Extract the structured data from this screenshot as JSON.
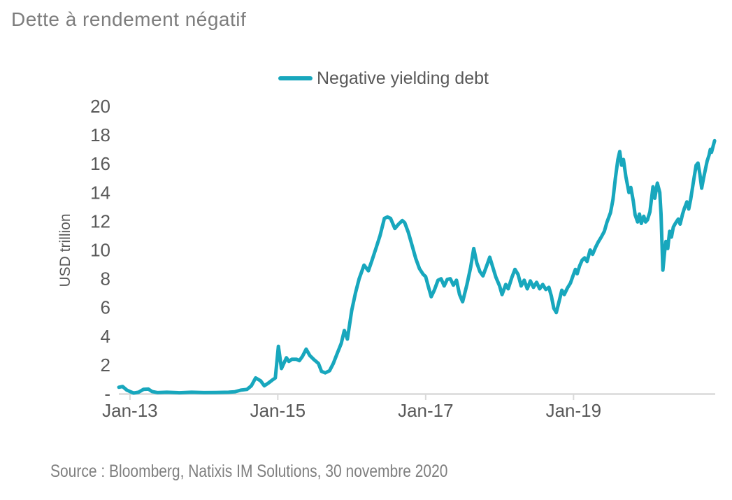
{
  "title": "Dette à rendement négatif",
  "legend": {
    "label": "Negative yielding debt"
  },
  "y_axis_title": "USD trillion",
  "source_note": "Source : Bloomberg, Natixis IM Solutions, 30 novembre 2020",
  "colors": {
    "series_line": "#18A7BD",
    "axis_line": "#D9D9D9",
    "tick_label": "#595959",
    "title_text": "#7D7D7D",
    "source_text": "#7F7F7F"
  },
  "chart_data": {
    "type": "line",
    "title": "Dette à rendement négatif",
    "xlabel": "",
    "ylabel": "USD trillion",
    "ylim": [
      0,
      20
    ],
    "grid": false,
    "legend_position": "top-center",
    "x_unit": "months since Jan-2013",
    "x_range_visible": [
      "Nov-2012",
      "30-Nov-2020"
    ],
    "y_ticks": [
      {
        "value": 20,
        "label": "20"
      },
      {
        "value": 18,
        "label": "18"
      },
      {
        "value": 16,
        "label": "16"
      },
      {
        "value": 14,
        "label": "14"
      },
      {
        "value": 12,
        "label": "12"
      },
      {
        "value": 10,
        "label": "10"
      },
      {
        "value": 8,
        "label": "8"
      },
      {
        "value": 6,
        "label": "6"
      },
      {
        "value": 4,
        "label": "4"
      },
      {
        "value": 2,
        "label": "2"
      },
      {
        "value": 0,
        "label": "-"
      }
    ],
    "x_ticks": [
      {
        "month": 0,
        "label": "Jan-13"
      },
      {
        "month": 24,
        "label": "Jan-15"
      },
      {
        "month": 48,
        "label": "Jan-17"
      },
      {
        "month": 72,
        "label": "Jan-19"
      }
    ],
    "series": [
      {
        "name": "Negative yielding debt",
        "color": "#18A7BD",
        "unit": "USD trillion",
        "points": [
          [
            -1.8,
            0.45
          ],
          [
            -1.2,
            0.5
          ],
          [
            -0.5,
            0.25
          ],
          [
            0,
            0.15
          ],
          [
            0.6,
            0.05
          ],
          [
            1.4,
            0.1
          ],
          [
            2.2,
            0.3
          ],
          [
            3,
            0.32
          ],
          [
            3.6,
            0.15
          ],
          [
            4.5,
            0.08
          ],
          [
            6,
            0.1
          ],
          [
            8,
            0.07
          ],
          [
            10,
            0.1
          ],
          [
            12,
            0.08
          ],
          [
            14,
            0.09
          ],
          [
            16,
            0.1
          ],
          [
            17,
            0.13
          ],
          [
            18,
            0.25
          ],
          [
            19,
            0.3
          ],
          [
            19.7,
            0.55
          ],
          [
            20.4,
            1.1
          ],
          [
            21.2,
            0.9
          ],
          [
            21.8,
            0.55
          ],
          [
            22.5,
            0.75
          ],
          [
            23.1,
            0.95
          ],
          [
            23.6,
            1.1
          ],
          [
            24.1,
            3.3
          ],
          [
            24.6,
            1.75
          ],
          [
            25.4,
            2.5
          ],
          [
            25.8,
            2.25
          ],
          [
            26.3,
            2.4
          ],
          [
            27,
            2.4
          ],
          [
            27.5,
            2.3
          ],
          [
            28,
            2.6
          ],
          [
            28.6,
            3.1
          ],
          [
            29.2,
            2.65
          ],
          [
            29.8,
            2.4
          ],
          [
            30.6,
            2.1
          ],
          [
            31.1,
            1.55
          ],
          [
            31.7,
            1.45
          ],
          [
            32.4,
            1.6
          ],
          [
            33,
            2.1
          ],
          [
            33.6,
            2.75
          ],
          [
            34.3,
            3.5
          ],
          [
            34.8,
            4.4
          ],
          [
            35.3,
            3.8
          ],
          [
            36,
            5.8
          ],
          [
            36.6,
            7.0
          ],
          [
            37.2,
            8.0
          ],
          [
            38,
            8.95
          ],
          [
            38.7,
            8.55
          ],
          [
            39.3,
            9.3
          ],
          [
            40,
            10.2
          ],
          [
            40.6,
            11.0
          ],
          [
            41.3,
            12.2
          ],
          [
            41.8,
            12.3
          ],
          [
            42.3,
            12.2
          ],
          [
            43,
            11.5
          ],
          [
            43.6,
            11.8
          ],
          [
            44.2,
            12.05
          ],
          [
            44.6,
            11.9
          ],
          [
            45.2,
            11.2
          ],
          [
            45.8,
            10.3
          ],
          [
            46.4,
            9.4
          ],
          [
            47,
            8.7
          ],
          [
            47.6,
            8.3
          ],
          [
            48,
            8.15
          ],
          [
            48.4,
            7.5
          ],
          [
            48.9,
            6.75
          ],
          [
            49.4,
            7.2
          ],
          [
            50,
            7.9
          ],
          [
            50.5,
            8.0
          ],
          [
            51,
            7.5
          ],
          [
            51.5,
            7.95
          ],
          [
            52,
            8.0
          ],
          [
            52.5,
            7.55
          ],
          [
            53,
            7.9
          ],
          [
            53.5,
            6.9
          ],
          [
            54,
            6.4
          ],
          [
            54.7,
            7.6
          ],
          [
            55.3,
            8.8
          ],
          [
            55.8,
            10.1
          ],
          [
            56.3,
            9.1
          ],
          [
            56.8,
            8.5
          ],
          [
            57.3,
            8.2
          ],
          [
            57.9,
            8.9
          ],
          [
            58.4,
            9.5
          ],
          [
            58.9,
            8.8
          ],
          [
            59.4,
            8.1
          ],
          [
            60,
            7.5
          ],
          [
            60.4,
            6.9
          ],
          [
            61,
            7.6
          ],
          [
            61.4,
            7.3
          ],
          [
            62,
            8.1
          ],
          [
            62.5,
            8.65
          ],
          [
            63,
            8.3
          ],
          [
            63.5,
            7.5
          ],
          [
            64,
            7.9
          ],
          [
            64.5,
            7.3
          ],
          [
            65,
            7.85
          ],
          [
            65.5,
            7.4
          ],
          [
            66,
            7.75
          ],
          [
            66.5,
            7.3
          ],
          [
            67,
            7.6
          ],
          [
            67.5,
            7.25
          ],
          [
            68,
            7.4
          ],
          [
            68.4,
            6.8
          ],
          [
            68.8,
            5.95
          ],
          [
            69.2,
            5.65
          ],
          [
            69.7,
            6.5
          ],
          [
            70.1,
            7.2
          ],
          [
            70.5,
            6.9
          ],
          [
            71,
            7.35
          ],
          [
            71.5,
            7.7
          ],
          [
            72,
            8.3
          ],
          [
            72.3,
            8.65
          ],
          [
            72.6,
            8.35
          ],
          [
            73,
            8.9
          ],
          [
            73.4,
            9.3
          ],
          [
            73.8,
            9.45
          ],
          [
            74.2,
            9.2
          ],
          [
            74.7,
            10.0
          ],
          [
            75.1,
            9.7
          ],
          [
            75.6,
            10.2
          ],
          [
            76,
            10.55
          ],
          [
            76.5,
            10.9
          ],
          [
            77,
            11.3
          ],
          [
            77.4,
            11.9
          ],
          [
            78,
            12.6
          ],
          [
            78.4,
            13.5
          ],
          [
            78.8,
            15.0
          ],
          [
            79.2,
            16.3
          ],
          [
            79.5,
            16.85
          ],
          [
            79.8,
            15.9
          ],
          [
            80.1,
            16.3
          ],
          [
            80.5,
            15.1
          ],
          [
            81,
            14.0
          ],
          [
            81.3,
            14.35
          ],
          [
            81.7,
            13.4
          ],
          [
            82,
            12.45
          ],
          [
            82.4,
            11.95
          ],
          [
            82.7,
            12.5
          ],
          [
            83,
            11.85
          ],
          [
            83.4,
            12.35
          ],
          [
            83.7,
            11.95
          ],
          [
            84,
            12.1
          ],
          [
            84.4,
            12.65
          ],
          [
            84.9,
            14.4
          ],
          [
            85.2,
            13.6
          ],
          [
            85.6,
            14.65
          ],
          [
            86,
            14.0
          ],
          [
            86.2,
            12.5
          ],
          [
            86.5,
            8.6
          ],
          [
            86.8,
            9.9
          ],
          [
            87,
            10.6
          ],
          [
            87.3,
            10.1
          ],
          [
            87.6,
            11.3
          ],
          [
            87.9,
            10.9
          ],
          [
            88.2,
            11.6
          ],
          [
            88.6,
            11.9
          ],
          [
            89,
            12.15
          ],
          [
            89.3,
            11.8
          ],
          [
            89.7,
            12.5
          ],
          [
            90,
            12.9
          ],
          [
            90.4,
            13.35
          ],
          [
            90.7,
            12.85
          ],
          [
            91,
            13.5
          ],
          [
            91.3,
            14.3
          ],
          [
            91.6,
            15.1
          ],
          [
            91.9,
            15.9
          ],
          [
            92.2,
            16.05
          ],
          [
            92.5,
            15.3
          ],
          [
            92.8,
            14.3
          ],
          [
            93.1,
            15.0
          ],
          [
            93.4,
            15.6
          ],
          [
            93.7,
            16.2
          ],
          [
            94,
            16.6
          ],
          [
            94.2,
            17.0
          ],
          [
            94.4,
            16.8
          ],
          [
            94.7,
            17.3
          ],
          [
            94.9,
            17.6
          ]
        ]
      }
    ]
  }
}
